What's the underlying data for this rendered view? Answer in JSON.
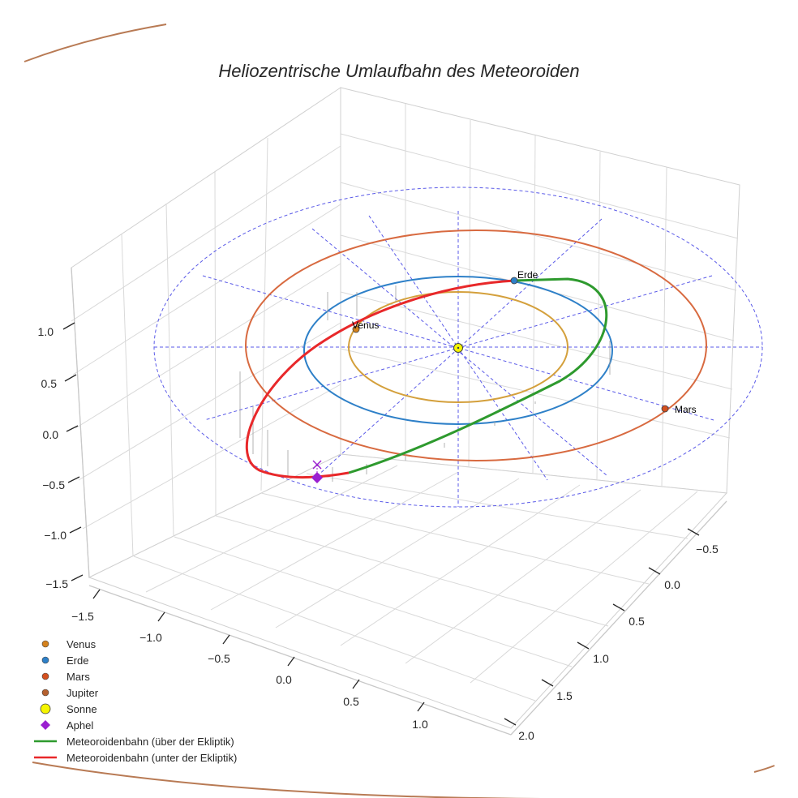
{
  "chart_data": {
    "type": "3d-orbit",
    "title": "Heliozentrische Umlaufbahn des Meteoroiden",
    "colors": {
      "venus": "#d4a03c",
      "earth": "#2e80c8",
      "mars": "#d86a40",
      "jupiter": "#b87a54",
      "sun": "#f5f500",
      "aphel": "#9a1fd0",
      "meteor_above": "#2e9a2e",
      "meteor_below": "#e8282a",
      "grid_circle": "#5a5ae8"
    },
    "axes": {
      "x_ticks": [
        "−1.5",
        "−1.0",
        "−0.5",
        "0.0",
        "0.5",
        "1.0"
      ],
      "y_ticks": [
        "−0.5",
        "0.0",
        "0.5",
        "1.0",
        "1.5",
        "2.0"
      ],
      "z_ticks": [
        "1.0",
        "0.5",
        "0.0",
        "−0.5",
        "−1.0",
        "−1.5"
      ],
      "grid": true
    },
    "orbits": [
      {
        "name": "Venus",
        "a": 0.72
      },
      {
        "name": "Erde",
        "a": 1.0
      },
      {
        "name": "Mars",
        "a": 1.52
      }
    ],
    "planets": [
      {
        "label": "Venus",
        "x": -0.7,
        "y": 0.1,
        "z": 0.0
      },
      {
        "label": "Erde",
        "x": 0.35,
        "y": -0.95,
        "z": 0.0
      },
      {
        "label": "Mars",
        "x": 1.2,
        "y": 0.95,
        "z": 0.0
      }
    ],
    "meteoroid_orbit": {
      "semi_major_axis_au": 1.5,
      "eccentricity": 0.33,
      "aphel": {
        "x": -0.93,
        "y": 1.55,
        "z": -0.09
      }
    },
    "legend": {
      "position": "bottom-left",
      "items": [
        {
          "label": "Venus",
          "marker": "dot",
          "color": "#d4821e"
        },
        {
          "label": "Erde",
          "marker": "dot",
          "color": "#2e80c8"
        },
        {
          "label": "Mars",
          "marker": "dot",
          "color": "#d4501e"
        },
        {
          "label": "Jupiter",
          "marker": "dot",
          "color": "#b4602e"
        },
        {
          "label": "Sonne",
          "marker": "big-dot",
          "color": "#f5f500"
        },
        {
          "label": "Aphel",
          "marker": "diamond",
          "color": "#9a1fd0"
        },
        {
          "label": "Meteoroidenbahn (über der Ekliptik)",
          "marker": "line",
          "color": "#2e9a2e"
        },
        {
          "label": "Meteoroidenbahn (unter der Ekliptik)",
          "marker": "line",
          "color": "#e8282a"
        }
      ]
    }
  }
}
